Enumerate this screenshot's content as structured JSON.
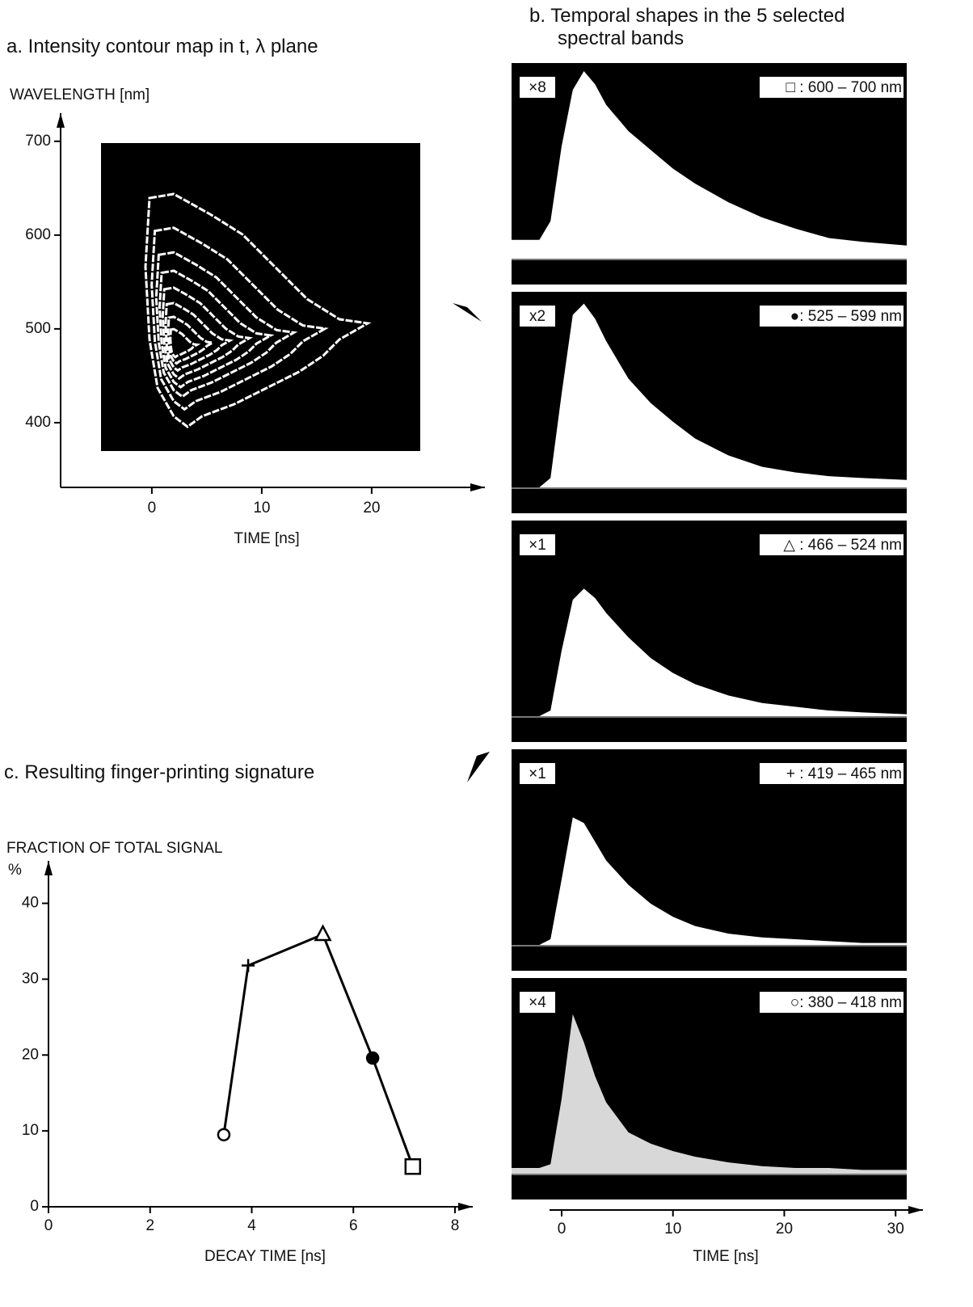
{
  "chart_data": [
    {
      "type": "contour",
      "title": "a.  Intensity contour map in t, λ plane",
      "ylabel": "WAVELENGTH [nm]",
      "xlabel": "TIME [ns]",
      "xlim": [
        -8.3,
        30.3
      ],
      "ylim": [
        331,
        730
      ],
      "xticks": [
        0,
        10,
        20
      ],
      "yticks": [
        400,
        500,
        600,
        700
      ]
    },
    {
      "type": "area-panels",
      "title": "b.  Temporal shapes in the 5 selected spectral bands",
      "xlabel": "TIME [ns]",
      "xlim": [
        -4.5,
        31
      ],
      "xticks": [
        0,
        10,
        20,
        30
      ],
      "ylim": [
        0,
        1
      ],
      "x": [
        -4.5,
        -2,
        -1,
        0,
        1,
        2,
        3,
        4,
        6,
        8,
        10,
        12,
        15,
        18,
        21,
        24,
        27,
        31
      ],
      "series": [
        {
          "name": "□ : 600 – 700 nm",
          "gain": "×8",
          "color": "#ffffff",
          "values": [
            0.1,
            0.1,
            0.2,
            0.6,
            0.9,
            1.0,
            0.93,
            0.82,
            0.68,
            0.58,
            0.48,
            0.4,
            0.3,
            0.22,
            0.16,
            0.11,
            0.09,
            0.07
          ]
        },
        {
          "name": "●: 525 – 599 nm",
          "gain": "x2",
          "color": "#ffffff",
          "values": [
            0,
            0,
            0.05,
            0.5,
            0.92,
            0.98,
            0.9,
            0.78,
            0.58,
            0.45,
            0.35,
            0.26,
            0.17,
            0.11,
            0.08,
            0.06,
            0.05,
            0.04
          ]
        },
        {
          "name": "△ : 466 – 524 nm",
          "gain": "×1",
          "color": "#ffffff",
          "values": [
            0,
            0,
            0.03,
            0.35,
            0.62,
            0.68,
            0.63,
            0.55,
            0.42,
            0.31,
            0.23,
            0.17,
            0.11,
            0.07,
            0.05,
            0.03,
            0.02,
            0.01
          ]
        },
        {
          "name": "+ : 419 – 465 nm",
          "gain": "×1",
          "color": "#ffffff",
          "values": [
            0,
            0,
            0.03,
            0.35,
            0.68,
            0.65,
            0.55,
            0.45,
            0.32,
            0.22,
            0.15,
            0.1,
            0.06,
            0.04,
            0.03,
            0.02,
            0.01,
            0.01
          ]
        },
        {
          "name": "○: 380 – 418 nm",
          "gain": "×4",
          "color": "#d8d8d8",
          "values": [
            0.03,
            0.03,
            0.05,
            0.4,
            0.85,
            0.7,
            0.52,
            0.38,
            0.22,
            0.16,
            0.12,
            0.09,
            0.06,
            0.04,
            0.03,
            0.03,
            0.02,
            0.02
          ]
        }
      ]
    },
    {
      "type": "line",
      "title": "c.  Resulting finger-printing signature",
      "ylabel": "FRACTION OF TOTAL SIGNAL",
      "yunit": "%",
      "xlabel": "DECAY TIME [ns]",
      "xlim": [
        0,
        8.35
      ],
      "ylim": [
        0,
        45.6
      ],
      "xticks": [
        0,
        2,
        4,
        6,
        8
      ],
      "yticks": [
        0,
        10,
        20,
        30,
        40
      ],
      "x": [
        3.45,
        3.93,
        5.4,
        6.38,
        7.17
      ],
      "values": [
        9.5,
        31.8,
        35.9,
        19.6,
        5.3
      ],
      "markers": [
        "circle",
        "plus",
        "triangle",
        "filled-circle",
        "square"
      ],
      "color": "#000000"
    }
  ]
}
